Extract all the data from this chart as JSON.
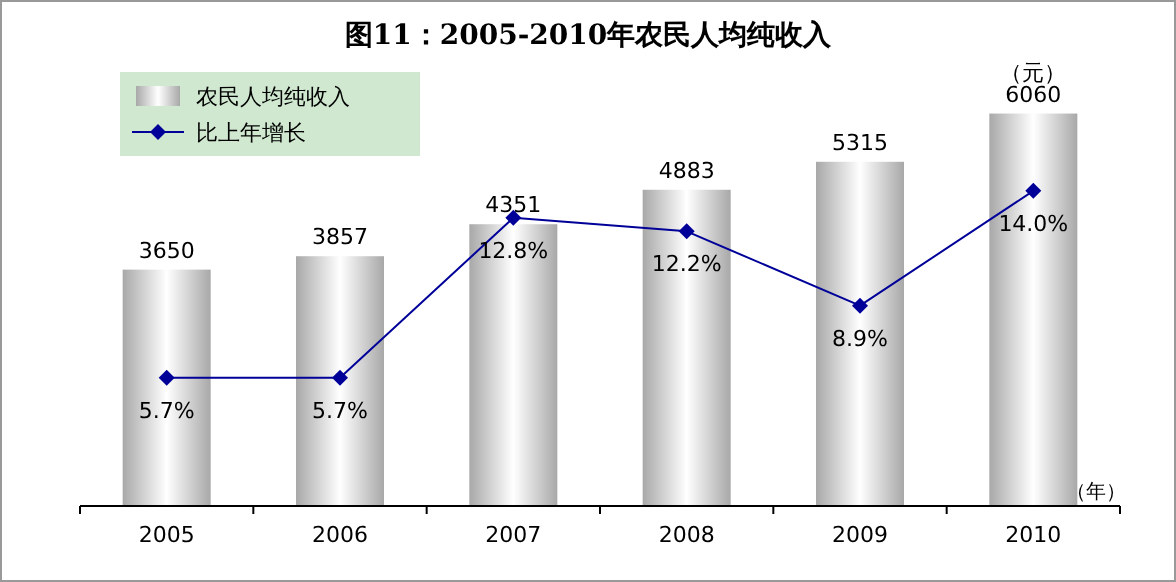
{
  "chart_data": {
    "type": "bar",
    "title": "图11：2005-2010年农民人均纯收入",
    "categories": [
      "2005",
      "2006",
      "2007",
      "2008",
      "2009",
      "2010"
    ],
    "series": [
      {
        "name": "农民人均纯收入",
        "color": "#a8a8a8",
        "values": [
          3650,
          3857,
          4351,
          4883,
          5315,
          6060
        ]
      },
      {
        "name": "比上年增长",
        "type": "line",
        "axis": "y2",
        "color": "#000099",
        "marker": "diamond",
        "values": [
          5.7,
          5.7,
          12.8,
          12.2,
          8.9,
          14.0
        ],
        "value_labels": [
          "5.7%",
          "5.7%",
          "12.8%",
          "12.2%",
          "8.9%",
          "14.0%"
        ]
      }
    ],
    "data_labels": true,
    "legend": "top left",
    "annotations": [
      "（元）",
      "（年）"
    ]
  }
}
